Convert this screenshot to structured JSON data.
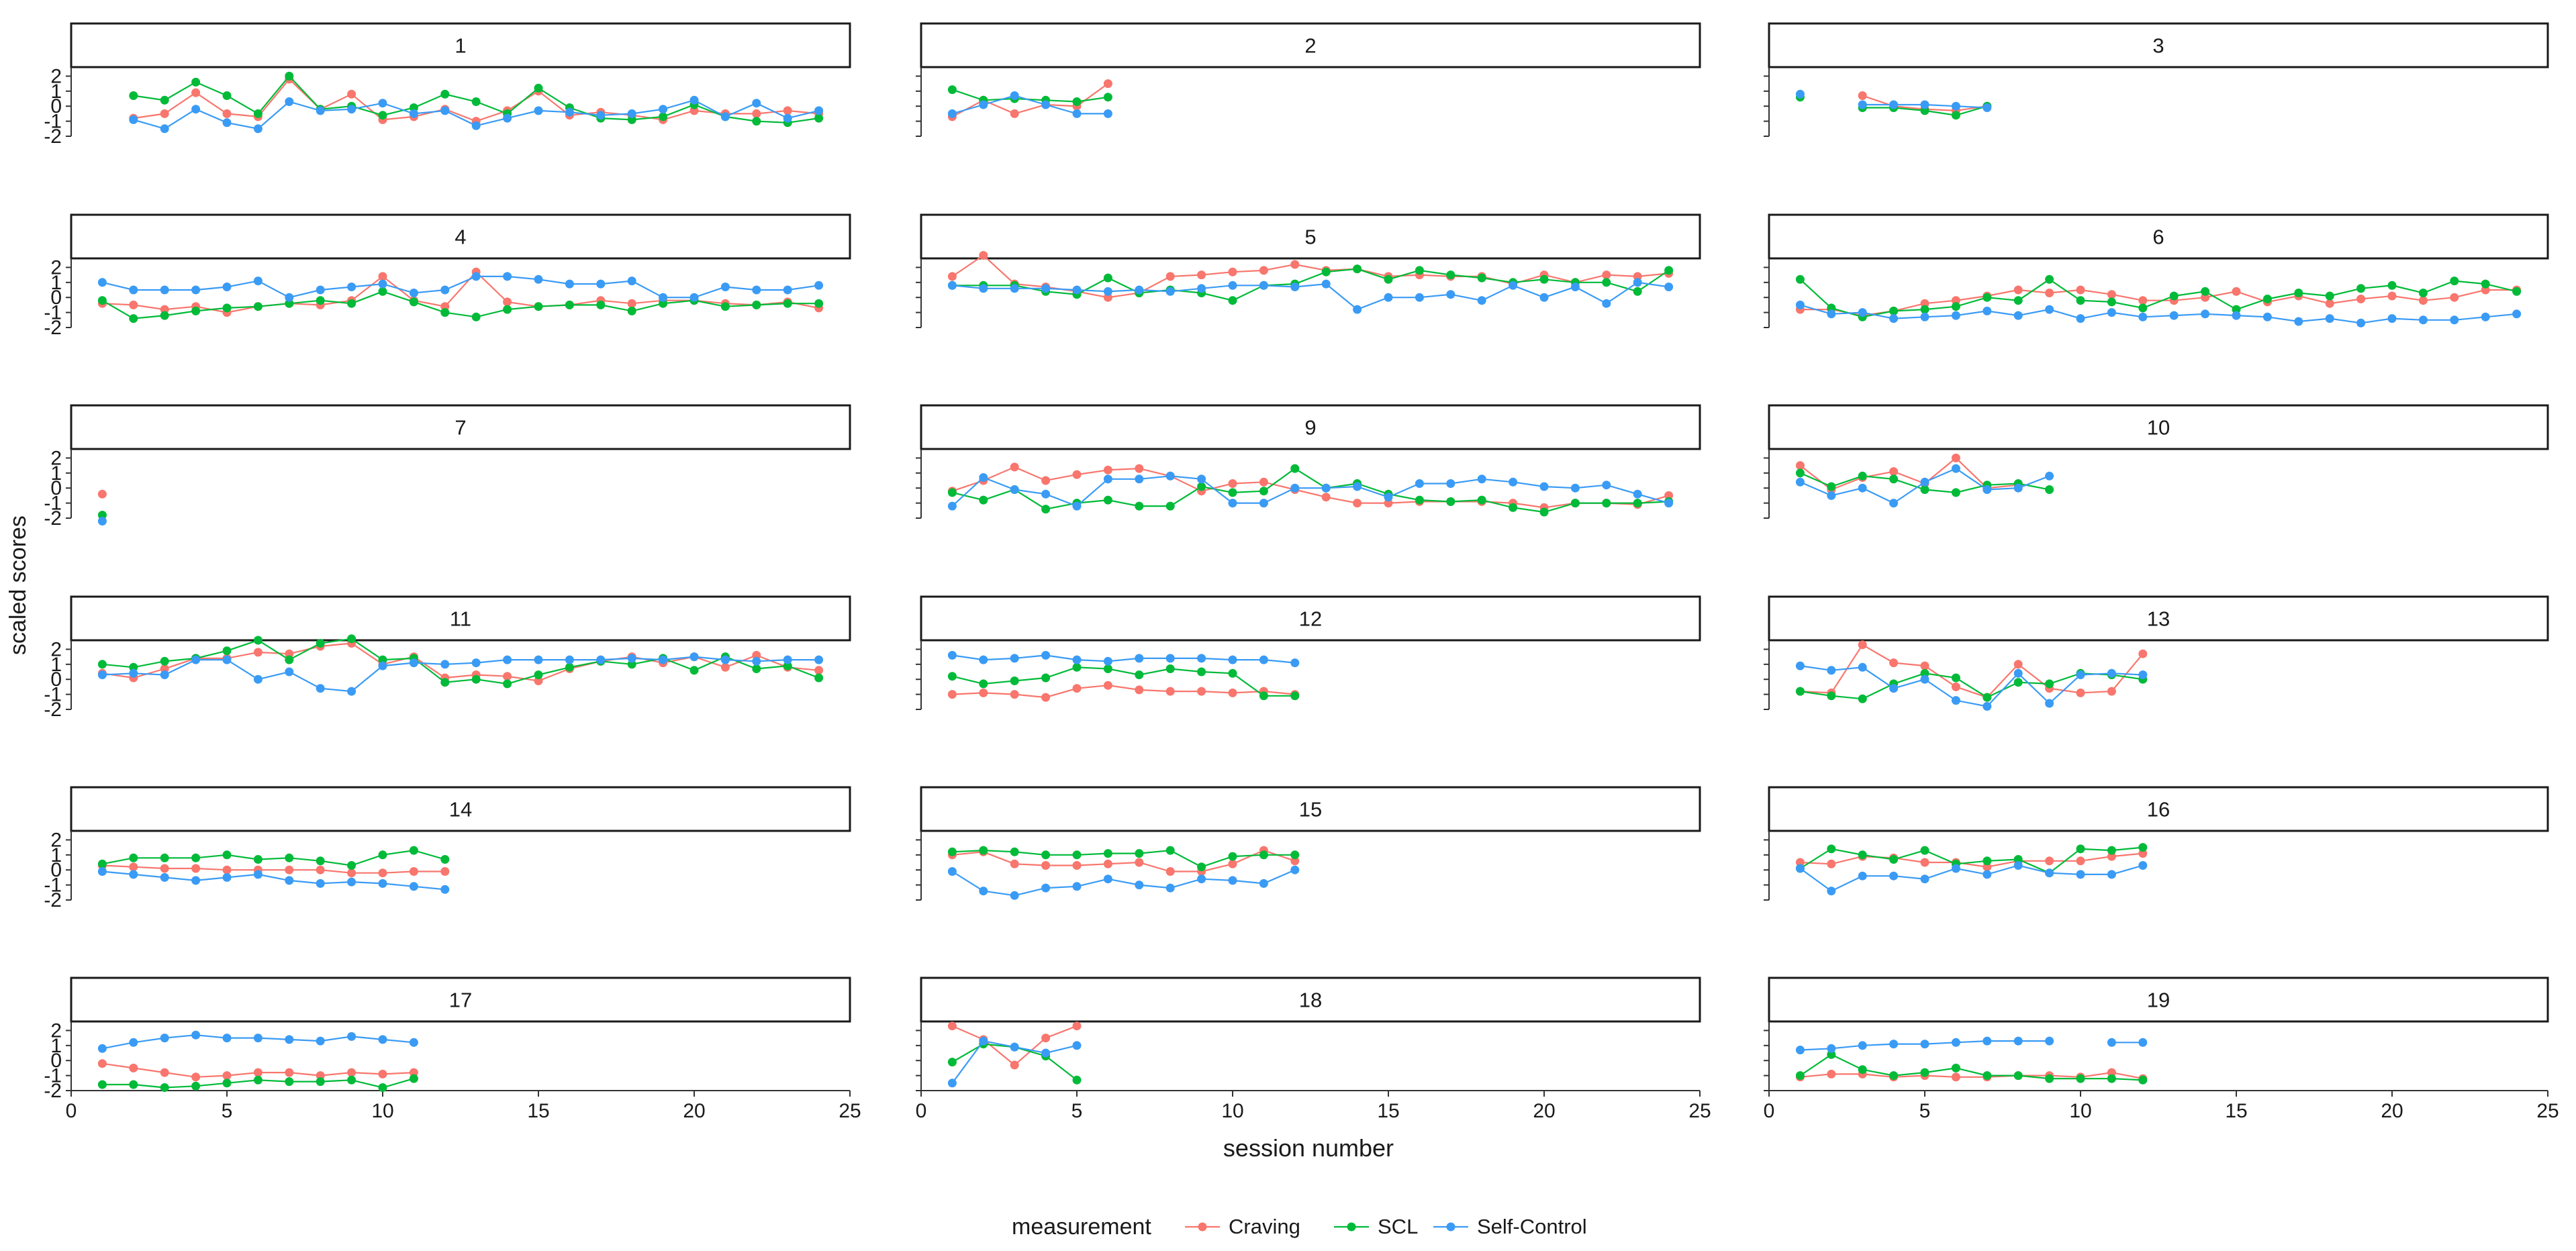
{
  "chart_data": {
    "type": "line",
    "title": "",
    "xlabel": "session number",
    "ylabel": "scaled scores",
    "xlim": [
      0,
      25
    ],
    "ylim": [
      -2,
      2.6
    ],
    "xticks": [
      "0",
      "5",
      "10",
      "15",
      "20",
      "25"
    ],
    "yticks": [
      "-2",
      "-1",
      "0",
      "1",
      "2"
    ],
    "legend": {
      "title": "measurement",
      "position": "bottom"
    },
    "series_meta": [
      {
        "name": "Craving",
        "color": "#f8766d"
      },
      {
        "name": "SCL",
        "color": "#00ba38"
      },
      {
        "name": "Self-Control",
        "color": "#3a9bf5"
      }
    ],
    "panels": [
      {
        "label": "1",
        "series": [
          [
            null,
            -0.8,
            -0.5,
            0.9,
            -0.5,
            -0.7,
            1.8,
            -0.2,
            0.8,
            -0.9,
            -0.7,
            -0.2,
            -1.0,
            -0.3,
            1.0,
            -0.6,
            -0.4,
            -0.6,
            -0.9,
            -0.3,
            -0.5,
            -0.5,
            -0.3,
            -0.5
          ],
          [
            null,
            0.7,
            0.4,
            1.6,
            0.7,
            -0.5,
            2.0,
            -0.2,
            0.0,
            -0.6,
            -0.1,
            0.8,
            0.3,
            -0.5,
            1.2,
            -0.1,
            -0.8,
            -0.9,
            -0.7,
            0.1,
            -0.7,
            -1.0,
            -1.1,
            -0.8
          ],
          [
            null,
            -0.9,
            -1.5,
            -0.2,
            -1.1,
            -1.5,
            0.3,
            -0.3,
            -0.2,
            0.2,
            -0.5,
            -0.3,
            -1.3,
            -0.8,
            -0.3,
            -0.4,
            -0.6,
            -0.5,
            -0.2,
            0.4,
            -0.7,
            0.2,
            -0.8,
            -0.3
          ]
        ]
      },
      {
        "label": "2",
        "series": [
          [
            -0.7,
            0.4,
            -0.5,
            0.1,
            0.0,
            1.5
          ],
          [
            1.1,
            0.4,
            0.5,
            0.4,
            0.3,
            0.6
          ],
          [
            -0.5,
            0.1,
            0.7,
            0.1,
            -0.5,
            -0.5
          ]
        ]
      },
      {
        "label": "3",
        "series": [
          [
            null,
            null,
            0.7,
            0.0,
            -0.2,
            -0.3,
            0.0
          ],
          [
            0.6,
            null,
            -0.1,
            -0.1,
            -0.3,
            -0.6,
            0.0
          ],
          [
            0.8,
            null,
            0.1,
            0.1,
            0.1,
            0.0,
            -0.1
          ]
        ]
      },
      {
        "label": "4",
        "series": [
          [
            -0.4,
            -0.5,
            -0.8,
            -0.6,
            -1.0,
            -0.6,
            -0.4,
            -0.5,
            -0.2,
            1.4,
            -0.2,
            -0.6,
            1.7,
            -0.3,
            -0.6,
            -0.5,
            -0.2,
            -0.4,
            -0.2,
            -0.2,
            -0.4,
            -0.5,
            -0.3,
            -0.7
          ],
          [
            -0.2,
            -1.4,
            -1.2,
            -0.9,
            -0.7,
            -0.6,
            -0.4,
            -0.2,
            -0.4,
            0.4,
            -0.3,
            -1.0,
            -1.3,
            -0.8,
            -0.6,
            -0.5,
            -0.5,
            -0.9,
            -0.4,
            -0.2,
            -0.6,
            -0.5,
            -0.4,
            -0.4
          ],
          [
            1.0,
            0.5,
            0.5,
            0.5,
            0.7,
            1.1,
            0.0,
            0.5,
            0.7,
            0.9,
            0.3,
            0.5,
            1.4,
            1.4,
            1.2,
            0.9,
            0.9,
            1.1,
            0.0,
            0.0,
            0.7,
            0.5,
            0.5,
            0.8
          ]
        ]
      },
      {
        "label": "5",
        "series": [
          [
            1.4,
            2.8,
            0.9,
            0.7,
            0.4,
            0.0,
            0.3,
            1.4,
            1.5,
            1.7,
            1.8,
            2.2,
            1.8,
            1.9,
            1.4,
            1.5,
            1.4,
            1.4,
            0.9,
            1.5,
            1.0,
            1.5,
            1.4,
            1.6
          ],
          [
            0.8,
            0.8,
            0.8,
            0.4,
            0.2,
            1.3,
            0.3,
            0.5,
            0.3,
            -0.2,
            0.8,
            0.9,
            1.7,
            1.9,
            1.2,
            1.8,
            1.5,
            1.3,
            1.0,
            1.2,
            1.0,
            1.0,
            0.4,
            1.8
          ],
          [
            0.8,
            0.6,
            0.6,
            0.6,
            0.5,
            0.4,
            0.5,
            0.4,
            0.6,
            0.8,
            0.8,
            0.7,
            0.9,
            -0.8,
            0.0,
            0.0,
            0.2,
            -0.2,
            0.8,
            0.0,
            0.7,
            -0.4,
            1.0,
            0.7
          ]
        ]
      },
      {
        "label": "6",
        "series": [
          [
            -0.8,
            -0.8,
            -1.2,
            -0.9,
            -0.4,
            -0.2,
            0.1,
            0.5,
            0.3,
            0.5,
            0.2,
            -0.2,
            -0.2,
            0.0,
            0.4,
            -0.3,
            0.1,
            -0.4,
            -0.1,
            0.1,
            -0.2,
            0.0,
            0.5,
            0.5
          ],
          [
            1.2,
            -0.7,
            -1.3,
            -0.9,
            -0.8,
            -0.6,
            0.0,
            -0.2,
            1.2,
            -0.2,
            -0.3,
            -0.7,
            0.1,
            0.4,
            -0.8,
            -0.1,
            0.3,
            0.1,
            0.6,
            0.8,
            0.3,
            1.1,
            0.9,
            0.4
          ],
          [
            -0.5,
            -1.1,
            -1.0,
            -1.4,
            -1.3,
            -1.2,
            -0.9,
            -1.2,
            -0.8,
            -1.4,
            -1.0,
            -1.3,
            -1.2,
            -1.1,
            -1.2,
            -1.3,
            -1.6,
            -1.4,
            -1.7,
            -1.4,
            -1.5,
            -1.5,
            -1.3,
            -1.1
          ]
        ]
      },
      {
        "label": "7",
        "series": [
          [
            -0.4
          ],
          [
            -1.8
          ],
          [
            -2.2
          ]
        ]
      },
      {
        "label": "9",
        "series": [
          [
            -0.2,
            0.5,
            1.4,
            0.5,
            0.9,
            1.2,
            1.3,
            0.8,
            -0.2,
            0.3,
            0.4,
            -0.1,
            -0.6,
            -1.0,
            -1.0,
            -0.9,
            -0.9,
            -0.9,
            -1.0,
            -1.3,
            -1.0,
            -1.0,
            -1.1,
            -0.5
          ],
          [
            -0.3,
            -0.8,
            -0.1,
            -1.4,
            -1.0,
            -0.8,
            -1.2,
            -1.2,
            0.1,
            -0.3,
            -0.2,
            1.3,
            0.0,
            0.3,
            -0.4,
            -0.8,
            -0.9,
            -0.8,
            -1.3,
            -1.6,
            -1.0,
            -1.0,
            -1.0,
            -0.9
          ],
          [
            -1.2,
            0.7,
            -0.1,
            -0.4,
            -1.2,
            0.6,
            0.6,
            0.8,
            0.6,
            -1.0,
            -1.0,
            0.0,
            0.0,
            0.1,
            -0.6,
            0.3,
            0.3,
            0.6,
            0.4,
            0.1,
            0.0,
            0.2,
            -0.4,
            -1.0
          ]
        ]
      },
      {
        "label": "10",
        "series": [
          [
            1.5,
            -0.1,
            0.7,
            1.1,
            0.3,
            2.0,
            0.0,
            0.2,
            null
          ],
          [
            1.0,
            0.1,
            0.8,
            0.6,
            -0.1,
            -0.3,
            0.2,
            0.3,
            -0.1
          ],
          [
            0.4,
            -0.5,
            0.0,
            -1.0,
            0.4,
            1.3,
            -0.1,
            0.0,
            0.8
          ]
        ]
      },
      {
        "label": "11",
        "series": [
          [
            0.4,
            0.1,
            0.7,
            1.4,
            1.4,
            1.8,
            1.7,
            2.2,
            2.4,
            1.0,
            1.5,
            0.1,
            0.3,
            0.2,
            -0.1,
            0.7,
            1.2,
            1.5,
            1.1,
            1.5,
            0.8,
            1.6,
            0.8,
            0.6
          ],
          [
            1.0,
            0.8,
            1.2,
            1.4,
            1.9,
            2.6,
            1.3,
            2.4,
            2.7,
            1.3,
            1.4,
            -0.2,
            0.0,
            -0.3,
            0.3,
            0.8,
            1.2,
            1.0,
            1.4,
            0.6,
            1.5,
            0.7,
            0.9,
            0.1
          ],
          [
            0.3,
            0.4,
            0.3,
            1.3,
            1.3,
            0.0,
            0.5,
            -0.6,
            -0.8,
            0.9,
            1.1,
            1.0,
            1.1,
            1.3,
            1.3,
            1.3,
            1.3,
            1.4,
            1.3,
            1.5,
            1.3,
            1.2,
            1.3,
            1.3
          ]
        ]
      },
      {
        "label": "12",
        "series": [
          [
            -1.0,
            -0.9,
            -1.0,
            -1.2,
            -0.6,
            -0.4,
            -0.7,
            -0.8,
            -0.8,
            -0.9,
            -0.8,
            -1.0
          ],
          [
            0.2,
            -0.3,
            -0.1,
            0.1,
            0.8,
            0.7,
            0.3,
            0.7,
            0.5,
            0.4,
            -1.1,
            -1.1
          ],
          [
            1.6,
            1.3,
            1.4,
            1.6,
            1.3,
            1.2,
            1.4,
            1.4,
            1.4,
            1.3,
            1.3,
            1.1
          ]
        ]
      },
      {
        "label": "13",
        "series": [
          [
            -0.8,
            -0.9,
            2.3,
            1.1,
            0.9,
            -0.5,
            -1.2,
            1.0,
            -0.6,
            -0.9,
            -0.8,
            1.7
          ],
          [
            -0.8,
            -1.1,
            -1.3,
            -0.3,
            0.4,
            0.1,
            -1.2,
            -0.2,
            -0.3,
            0.4,
            0.3,
            0.0
          ],
          [
            0.9,
            0.6,
            0.8,
            -0.6,
            0.0,
            -1.4,
            -1.8,
            0.4,
            -1.6,
            0.3,
            0.4,
            0.3
          ]
        ]
      },
      {
        "label": "14",
        "series": [
          [
            0.3,
            0.2,
            0.1,
            0.1,
            0.0,
            0.0,
            0.0,
            0.0,
            -0.2,
            -0.2,
            -0.1,
            -0.1
          ],
          [
            0.4,
            0.8,
            0.8,
            0.8,
            1.0,
            0.7,
            0.8,
            0.6,
            0.3,
            1.0,
            1.3,
            0.7
          ],
          [
            -0.1,
            -0.3,
            -0.5,
            -0.7,
            -0.5,
            -0.3,
            -0.7,
            -0.9,
            -0.8,
            -0.9,
            -1.1,
            -1.3
          ]
        ]
      },
      {
        "label": "15",
        "series": [
          [
            1.0,
            1.2,
            0.4,
            0.3,
            0.3,
            0.4,
            0.5,
            -0.1,
            -0.1,
            0.4,
            1.3,
            0.6
          ],
          [
            1.2,
            1.3,
            1.2,
            1.0,
            1.0,
            1.1,
            1.1,
            1.3,
            0.2,
            0.9,
            1.0,
            1.0
          ],
          [
            -0.1,
            -1.4,
            -1.7,
            -1.2,
            -1.1,
            -0.6,
            -1.0,
            -1.2,
            -0.6,
            -0.7,
            -0.9,
            0.0
          ]
        ]
      },
      {
        "label": "16",
        "series": [
          [
            0.5,
            0.4,
            0.9,
            0.8,
            0.5,
            0.5,
            0.2,
            0.6,
            0.6,
            0.6,
            0.9,
            1.1
          ],
          [
            0.1,
            1.4,
            1.0,
            0.7,
            1.3,
            0.4,
            0.6,
            0.7,
            -0.2,
            1.4,
            1.3,
            1.5
          ],
          [
            0.1,
            -1.4,
            -0.4,
            -0.4,
            -0.6,
            0.1,
            -0.3,
            0.3,
            -0.2,
            -0.3,
            -0.3,
            0.3
          ]
        ]
      },
      {
        "label": "17",
        "series": [
          [
            -0.2,
            -0.5,
            -0.8,
            -1.1,
            -1.0,
            -0.8,
            -0.8,
            -1.0,
            -0.8,
            -0.9,
            -0.8,
            null
          ],
          [
            -1.6,
            -1.6,
            -1.8,
            -1.7,
            -1.5,
            -1.3,
            -1.4,
            -1.4,
            -1.3,
            -1.8,
            -1.2,
            null
          ],
          [
            0.8,
            1.2,
            1.5,
            1.7,
            1.5,
            1.5,
            1.4,
            1.3,
            1.6,
            1.4,
            1.2,
            null
          ]
        ]
      },
      {
        "label": "18",
        "series": [
          [
            2.3,
            1.4,
            -0.3,
            1.5,
            2.3
          ],
          [
            -0.1,
            1.1,
            0.9,
            0.3,
            -1.3
          ],
          [
            -1.5,
            1.3,
            0.9,
            0.5,
            1.0
          ]
        ]
      },
      {
        "label": "19",
        "series": [
          [
            -1.1,
            -0.9,
            -0.9,
            -1.1,
            -1.0,
            -1.1,
            -1.1,
            -1.0,
            -1.0,
            -1.1,
            -0.8,
            -1.2
          ],
          [
            -1.0,
            0.4,
            -0.6,
            -1.0,
            -0.8,
            -0.5,
            -1.0,
            -1.0,
            -1.2,
            -1.2,
            -1.2,
            -1.3
          ],
          [
            0.7,
            0.8,
            1.0,
            1.1,
            1.1,
            1.2,
            1.3,
            1.3,
            1.3,
            null,
            1.2,
            1.2
          ]
        ]
      }
    ]
  }
}
